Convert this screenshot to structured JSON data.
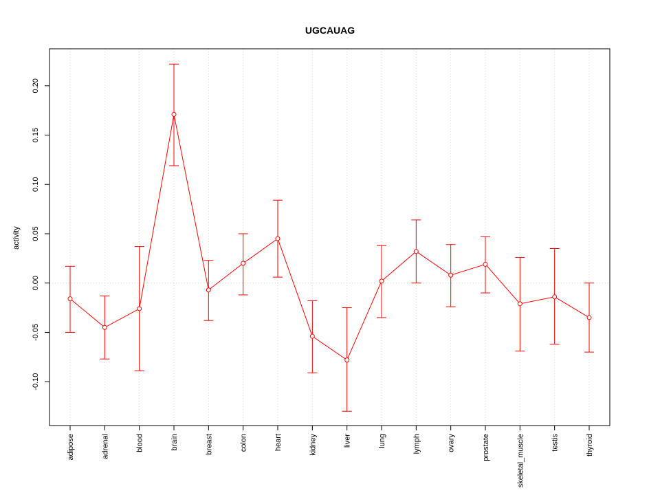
{
  "chart_data": {
    "type": "line",
    "title": "UGCAUAG",
    "xlabel": "",
    "ylabel": "activity",
    "categories": [
      "adipose",
      "adrenal",
      "blood",
      "brain",
      "breast",
      "colon",
      "heart",
      "kidney",
      "liver",
      "lung",
      "lymph",
      "ovary",
      "prostate",
      "skeletal_muscle",
      "testis",
      "thyroid"
    ],
    "series": [
      {
        "values": [
          -0.016,
          -0.045,
          -0.026,
          0.171,
          -0.007,
          0.02,
          0.045,
          -0.054,
          -0.078,
          0.002,
          0.032,
          0.008,
          0.019,
          -0.021,
          -0.014,
          -0.035
        ],
        "upper": [
          0.017,
          -0.013,
          0.037,
          0.222,
          0.023,
          0.05,
          0.084,
          -0.018,
          -0.025,
          0.038,
          0.064,
          0.039,
          0.047,
          0.026,
          0.035,
          0.0
        ],
        "lower": [
          -0.05,
          -0.077,
          -0.089,
          0.119,
          -0.038,
          -0.012,
          0.006,
          -0.091,
          -0.13,
          -0.035,
          0.0,
          -0.024,
          -0.01,
          -0.069,
          -0.062,
          -0.07
        ],
        "color": "#ff0000"
      }
    ],
    "ylim": [
      -0.1445,
      0.2375
    ],
    "yticks": [
      -0.1,
      -0.05,
      0.0,
      0.05,
      0.1,
      0.15,
      0.2
    ],
    "ytick_labels": [
      "-0.10",
      "-0.05",
      "0.00",
      "0.05",
      "0.10",
      "0.15",
      "0.20"
    ],
    "grid": true,
    "zero_line": true,
    "colors": {
      "series": "#ff0000",
      "grid": "#d3d3d3",
      "frame": "#000000"
    }
  }
}
